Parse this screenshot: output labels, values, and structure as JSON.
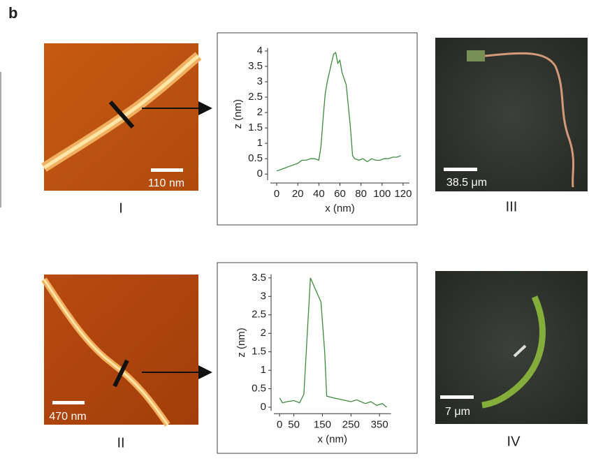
{
  "panel_label": "b",
  "images": [
    {
      "scale_bar": "110 nm",
      "caption": "I"
    },
    {
      "scale_bar": "470 nm",
      "caption": "II"
    },
    {
      "scale_bar": "38.5 μm",
      "caption": "III"
    },
    {
      "scale_bar": "7 μm",
      "caption": "IV"
    }
  ],
  "chart_data": [
    {
      "type": "line",
      "xlabel": "x (nm)",
      "ylabel": "z (nm)",
      "color": "#3d8c3d",
      "x": [
        0,
        4,
        8,
        12,
        16,
        20,
        24,
        28,
        32,
        36,
        40,
        42,
        44,
        46,
        48,
        50,
        52,
        54,
        56,
        58,
        60,
        62,
        64,
        66,
        68,
        70,
        72,
        74,
        78,
        82,
        86,
        90,
        94,
        98,
        102,
        106,
        110,
        114,
        118
      ],
      "values": [
        0.1,
        0.15,
        0.2,
        0.25,
        0.3,
        0.35,
        0.45,
        0.45,
        0.5,
        0.5,
        0.45,
        0.9,
        1.8,
        2.6,
        3.0,
        3.3,
        3.6,
        3.9,
        3.95,
        3.6,
        3.7,
        3.3,
        3.1,
        2.9,
        2.2,
        1.5,
        0.6,
        0.5,
        0.45,
        0.5,
        0.4,
        0.5,
        0.45,
        0.45,
        0.5,
        0.5,
        0.55,
        0.55,
        0.6
      ],
      "xlim": [
        -6,
        126
      ],
      "ylim": [
        -0.2,
        4.1
      ],
      "xticks": [
        0,
        20,
        40,
        60,
        80,
        100,
        120
      ],
      "yticks": [
        0,
        0.5,
        1,
        1.5,
        2,
        2.5,
        3,
        3.5,
        4
      ]
    },
    {
      "type": "line",
      "xlabel": "x (nm)",
      "ylabel": "z (nm)",
      "color": "#3d8c3d",
      "x": [
        0,
        10,
        25,
        50,
        70,
        85,
        108,
        125,
        145,
        158,
        165,
        190,
        220,
        250,
        270,
        300,
        320,
        340,
        360,
        375
      ],
      "values": [
        0.25,
        0.12,
        0.15,
        0.18,
        0.12,
        0.35,
        3.5,
        3.2,
        2.85,
        1.5,
        0.3,
        0.25,
        0.2,
        0.15,
        0.2,
        0.1,
        0.15,
        0.05,
        0.1,
        0
      ],
      "xlim": [
        -20,
        390
      ],
      "ylim": [
        -0.1,
        3.6
      ],
      "xticks": [
        0,
        50,
        150,
        250,
        350
      ],
      "yticks": [
        0,
        0.5,
        1,
        1.5,
        2,
        2.5,
        3,
        3.5
      ]
    }
  ]
}
